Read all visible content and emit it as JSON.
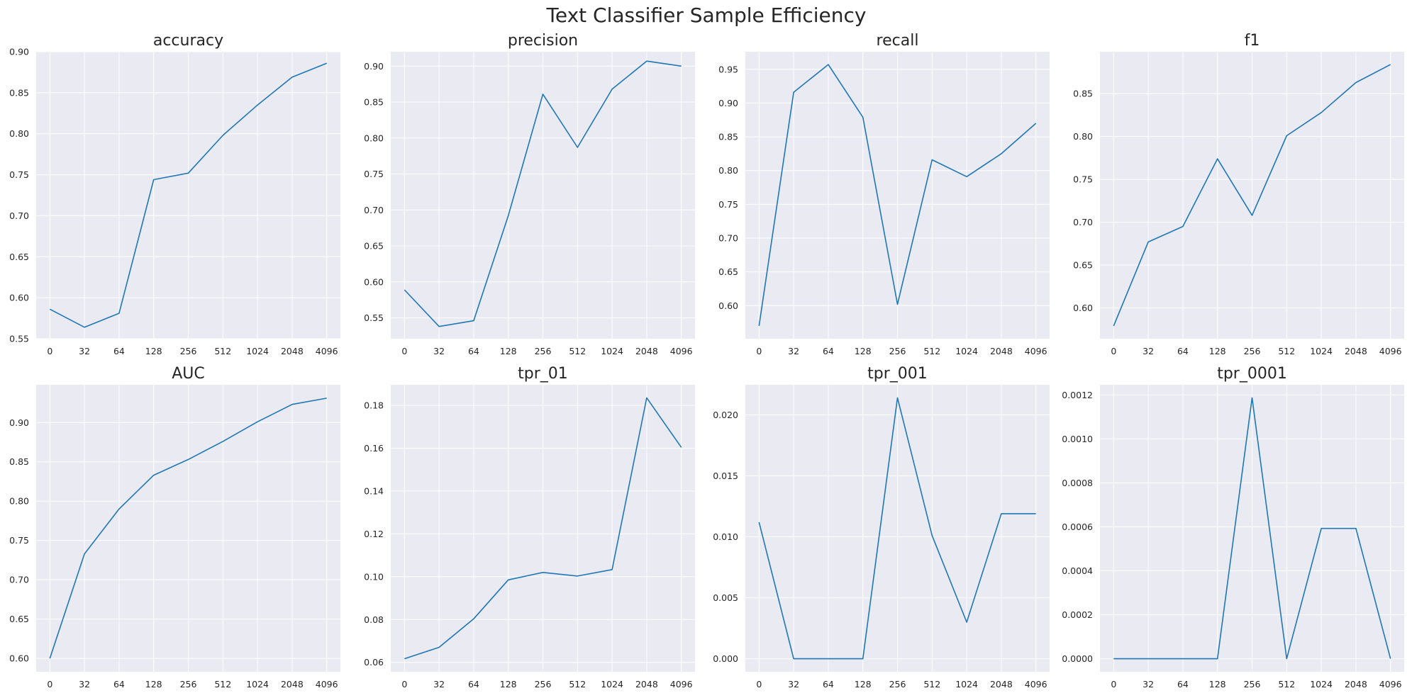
{
  "suptitle": "Text Classifier Sample Efficiency",
  "colors": {
    "line": "#1f77b4",
    "panel_bg": "#eaeaf2",
    "grid": "#ffffff",
    "text": "#262626"
  },
  "chart_data": [
    {
      "type": "line",
      "title": "accuracy",
      "grid": true,
      "categories": [
        "0",
        "32",
        "64",
        "128",
        "256",
        "512",
        "1024",
        "2048",
        "4096"
      ],
      "values": [
        0.586,
        0.564,
        0.581,
        0.744,
        0.752,
        0.798,
        0.835,
        0.869,
        0.886
      ],
      "yticks": [
        "0.55",
        "0.60",
        "0.65",
        "0.70",
        "0.75",
        "0.80",
        "0.85",
        "0.90"
      ],
      "ylim": [
        0.55,
        0.9
      ]
    },
    {
      "type": "line",
      "title": "precision",
      "grid": true,
      "categories": [
        "0",
        "32",
        "64",
        "128",
        "256",
        "512",
        "1024",
        "2048",
        "4096"
      ],
      "values": [
        0.589,
        0.538,
        0.546,
        0.692,
        0.861,
        0.787,
        0.868,
        0.907,
        0.9
      ],
      "yticks": [
        "0.55",
        "0.60",
        "0.65",
        "0.70",
        "0.75",
        "0.80",
        "0.85",
        "0.90"
      ],
      "ylim": [
        0.521,
        0.92
      ]
    },
    {
      "type": "line",
      "title": "recall",
      "grid": true,
      "categories": [
        "0",
        "32",
        "64",
        "128",
        "256",
        "512",
        "1024",
        "2048",
        "4096"
      ],
      "values": [
        0.57,
        0.916,
        0.957,
        0.879,
        0.602,
        0.816,
        0.791,
        0.825,
        0.87
      ],
      "yticks": [
        "0.60",
        "0.65",
        "0.70",
        "0.75",
        "0.80",
        "0.85",
        "0.90",
        "0.95"
      ],
      "ylim": [
        0.551,
        0.976
      ]
    },
    {
      "type": "line",
      "title": "f1",
      "grid": true,
      "categories": [
        "0",
        "32",
        "64",
        "128",
        "256",
        "512",
        "1024",
        "2048",
        "4096"
      ],
      "values": [
        0.579,
        0.677,
        0.695,
        0.774,
        0.708,
        0.801,
        0.828,
        0.863,
        0.884
      ],
      "yticks": [
        "0.60",
        "0.65",
        "0.70",
        "0.75",
        "0.80",
        "0.85"
      ],
      "ylim": [
        0.564,
        0.899
      ]
    },
    {
      "type": "line",
      "title": "AUC",
      "grid": true,
      "categories": [
        "0",
        "32",
        "64",
        "128",
        "256",
        "512",
        "1024",
        "2048",
        "4096"
      ],
      "values": [
        0.6,
        0.733,
        0.79,
        0.833,
        0.853,
        0.876,
        0.901,
        0.923,
        0.931
      ],
      "yticks": [
        "0.60",
        "0.65",
        "0.70",
        "0.75",
        "0.80",
        "0.85",
        "0.90"
      ],
      "ylim": [
        0.583,
        0.948
      ]
    },
    {
      "type": "line",
      "title": "tpr_01",
      "grid": true,
      "categories": [
        "0",
        "32",
        "64",
        "128",
        "256",
        "512",
        "1024",
        "2048",
        "4096"
      ],
      "values": [
        0.0617,
        0.067,
        0.0803,
        0.0985,
        0.102,
        0.1003,
        0.1033,
        0.1835,
        0.1604
      ],
      "yticks": [
        "0.06",
        "0.08",
        "0.10",
        "0.12",
        "0.14",
        "0.16",
        "0.18"
      ],
      "ylim": [
        0.0556,
        0.1896
      ]
    },
    {
      "type": "line",
      "title": "tpr_001",
      "grid": true,
      "categories": [
        "0",
        "32",
        "64",
        "128",
        "256",
        "512",
        "1024",
        "2048",
        "4096"
      ],
      "values": [
        0.0112,
        0.0,
        0.0,
        0.0,
        0.0214,
        0.0101,
        0.003,
        0.0119,
        0.0119
      ],
      "yticks": [
        "0.000",
        "0.005",
        "0.010",
        "0.015",
        "0.020"
      ],
      "ylim": [
        -0.00107,
        0.02247
      ]
    },
    {
      "type": "line",
      "title": "tpr_0001",
      "grid": true,
      "categories": [
        "0",
        "32",
        "64",
        "128",
        "256",
        "512",
        "1024",
        "2048",
        "4096"
      ],
      "values": [
        0.0,
        0.0,
        0.0,
        0.0,
        0.001187,
        0.0,
        0.000593,
        0.000593,
        0.0
      ],
      "yticks": [
        "0.0000",
        "0.0002",
        "0.0004",
        "0.0006",
        "0.0008",
        "0.0010",
        "0.0012"
      ],
      "ylim": [
        -5.94e-05,
        0.0012464
      ]
    }
  ]
}
